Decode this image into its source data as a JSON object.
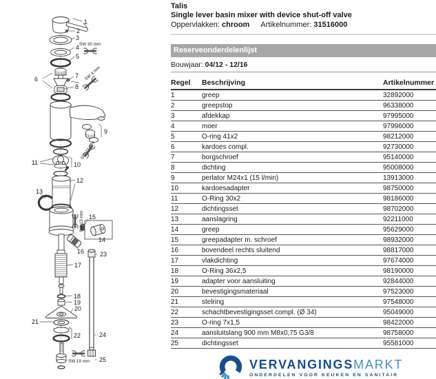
{
  "header": {
    "product": "Talis",
    "description": "Single lever basin mixer with device shut-off valve",
    "surface_label": "Oppervlakken:",
    "surface_value": "chroom",
    "article_label": "Artikelnummer:",
    "article_value": "31516000"
  },
  "parts_list": {
    "title": "Reserveonderdelenlijst",
    "year_label": "Bouwjaar:",
    "year_value": "04/12 - 12/16"
  },
  "table": {
    "columns": [
      "Regel",
      "Beschrijving",
      "Artikelnummer"
    ],
    "rows": [
      {
        "regel": "1",
        "beschrijving": "greep",
        "artikelnummer": "32892000"
      },
      {
        "regel": "2",
        "beschrijving": "greepstop",
        "artikelnummer": "96338000"
      },
      {
        "regel": "3",
        "beschrijving": "afdekkap",
        "artikelnummer": "97995000"
      },
      {
        "regel": "4",
        "beschrijving": "moer",
        "artikelnummer": "97996000"
      },
      {
        "regel": "5",
        "beschrijving": "O-ring 41x2",
        "artikelnummer": "98212000"
      },
      {
        "regel": "6",
        "beschrijving": "kardoes compl.",
        "artikelnummer": "92730000"
      },
      {
        "regel": "7",
        "beschrijving": "borgschroef",
        "artikelnummer": "95140000"
      },
      {
        "regel": "8",
        "beschrijving": "dichting",
        "artikelnummer": "95008000"
      },
      {
        "regel": "9",
        "beschrijving": "perlator M24x1 (15 l/min)",
        "artikelnummer": "13913000"
      },
      {
        "regel": "10",
        "beschrijving": "kardoesadapter",
        "artikelnummer": "98750000"
      },
      {
        "regel": "11",
        "beschrijving": "O-Ring 30x2",
        "artikelnummer": "98186000"
      },
      {
        "regel": "12",
        "beschrijving": "dichtingsset",
        "artikelnummer": "98702000"
      },
      {
        "regel": "13",
        "beschrijving": "aanslagring",
        "artikelnummer": "92211000"
      },
      {
        "regel": "14",
        "beschrijving": "greep",
        "artikelnummer": "95629000"
      },
      {
        "regel": "15",
        "beschrijving": "greepadapter m. schroef",
        "artikelnummer": "98932000"
      },
      {
        "regel": "16",
        "beschrijving": "bovendeel rechts sluitend",
        "artikelnummer": "98817000"
      },
      {
        "regel": "17",
        "beschrijving": "vlakdichting",
        "artikelnummer": "97674000"
      },
      {
        "regel": "18",
        "beschrijving": "O-Ring 36x2,5",
        "artikelnummer": "98190000"
      },
      {
        "regel": "19",
        "beschrijving": "adapter voor aansluiting",
        "artikelnummer": "92844000"
      },
      {
        "regel": "20",
        "beschrijving": "bevestigingsmateriaal",
        "artikelnummer": "97523000"
      },
      {
        "regel": "21",
        "beschrijving": "stelring",
        "artikelnummer": "97548000"
      },
      {
        "regel": "22",
        "beschrijving": "schachtbevestigingsset compl. (Ø 34)",
        "artikelnummer": "95049000"
      },
      {
        "regel": "23",
        "beschrijving": "O-ring 7x1,5",
        "artikelnummer": "98422000"
      },
      {
        "regel": "24",
        "beschrijving": "aansluitslang 900 mm M8x0,75 G3/8",
        "artikelnummer": "98758000"
      },
      {
        "regel": "25",
        "beschrijving": "dichtingsset",
        "artikelnummer": "95581000"
      }
    ]
  },
  "diagram": {
    "callouts": [
      "1",
      "2",
      "3",
      "4",
      "5",
      "6",
      "7",
      "8",
      "9",
      "10",
      "11",
      "12",
      "13",
      "14",
      "15",
      "16",
      "17",
      "18",
      "19",
      "20",
      "21",
      "22",
      "23",
      "24",
      "25"
    ],
    "sw_labels": [
      "SW 30 mm",
      "SW 4 mm",
      "SW 22 mm",
      "SW 15 mm",
      "SW 19 mm"
    ]
  },
  "brand": {
    "name_primary": "VERVANGINGS",
    "name_secondary": "MARKT",
    "tagline": "ONDERDELEN VOOR KEUKEN EN SANITAIR",
    "color_primary": "#174f8c",
    "color_secondary": "#3e92c6"
  },
  "colors": {
    "section_bar_bg": "#a7a7a7",
    "section_bar_text": "#ffffff",
    "table_line": "#555555",
    "diagram_line": "#3a3a3a"
  }
}
